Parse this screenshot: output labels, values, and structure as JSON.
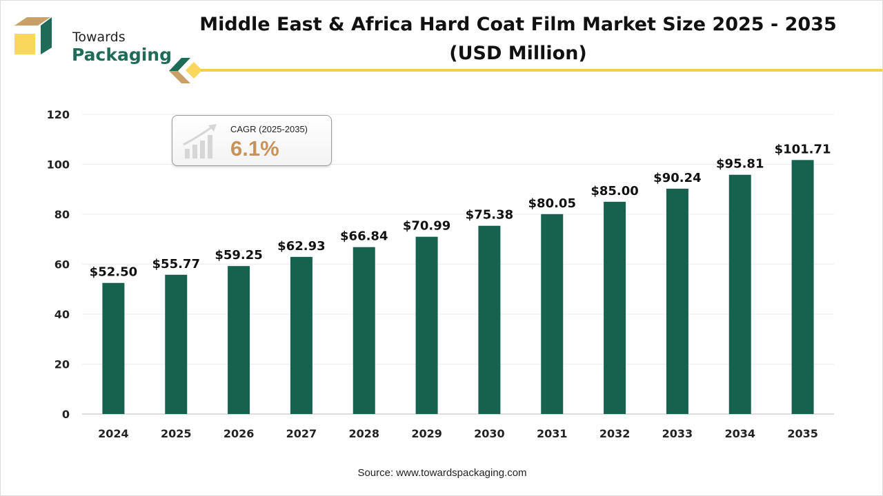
{
  "logo": {
    "line1": "Towards",
    "line2": "Packaging",
    "colors": {
      "green": "#1e6b57",
      "tan": "#c9a06a",
      "yellow": "#f9d65c"
    }
  },
  "header": {
    "title_line1": "Middle East & Africa Hard Coat Film Market Size 2025 - 2035",
    "title_line2": "(USD Million)"
  },
  "cagr": {
    "label": "CAGR (2025-2035)",
    "value": "6.1%",
    "icon": "growth-bar-chart-icon"
  },
  "source": "Source: www.towardspackaging.com",
  "chart_data": {
    "type": "bar",
    "categories": [
      "2024",
      "2025",
      "2026",
      "2027",
      "2028",
      "2029",
      "2030",
      "2031",
      "2032",
      "2033",
      "2034",
      "2035"
    ],
    "values": [
      52.5,
      55.77,
      59.25,
      62.93,
      66.84,
      70.99,
      75.38,
      80.05,
      85.0,
      90.24,
      95.81,
      101.71
    ],
    "data_labels": [
      "$52.50",
      "$55.77",
      "$59.25",
      "$62.93",
      "$66.84",
      "$70.99",
      "$75.38",
      "$80.05",
      "$85.00",
      "$90.24",
      "$95.81",
      "$101.71"
    ],
    "ylim": [
      0,
      120
    ],
    "yticks": [
      0,
      20,
      40,
      60,
      80,
      100,
      120
    ],
    "grid": true,
    "bar_color": "#17614f",
    "xlabel": "",
    "ylabel": ""
  }
}
